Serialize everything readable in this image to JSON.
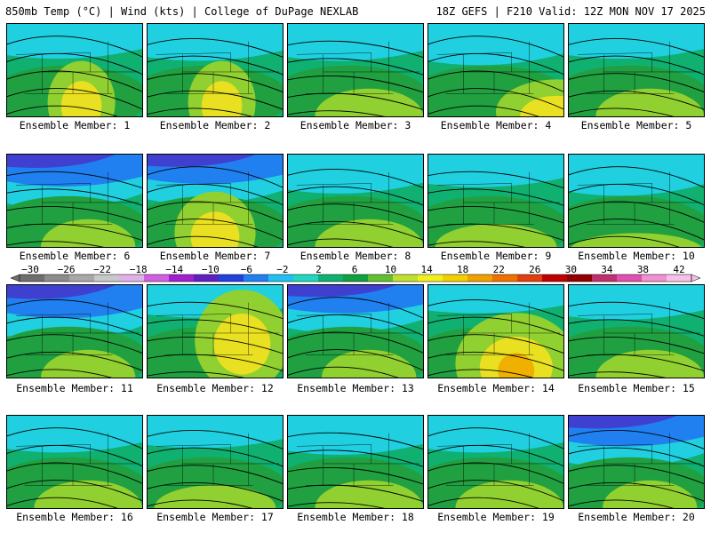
{
  "header": {
    "left": "850mb Temp (°C) | Wind (kts) | College of DuPage NEXLAB",
    "right": "18Z GEFS | F210 Valid: 12Z MON NOV 17 2025"
  },
  "members": [
    {
      "label": "Ensemble Member: 1",
      "pattern": "warm-center",
      "cold": 0.35
    },
    {
      "label": "Ensemble Member: 2",
      "pattern": "warm-center",
      "cold": 0.4
    },
    {
      "label": "Ensemble Member: 3",
      "pattern": "mild",
      "cold": 0.4
    },
    {
      "label": "Ensemble Member: 4",
      "pattern": "warm-southeast",
      "cold": 0.5
    },
    {
      "label": "Ensemble Member: 5",
      "pattern": "mild",
      "cold": 0.35
    },
    {
      "label": "Ensemble Member: 6",
      "pattern": "cold-north",
      "cold": 0.8
    },
    {
      "label": "Ensemble Member: 7",
      "pattern": "warm-center-cold-ne",
      "cold": 0.7
    },
    {
      "label": "Ensemble Member: 8",
      "pattern": "mild",
      "cold": 0.45
    },
    {
      "label": "Ensemble Member: 9",
      "pattern": "mild-green",
      "cold": 0.3
    },
    {
      "label": "Ensemble Member: 10",
      "pattern": "cool",
      "cold": 0.5
    },
    {
      "label": "Ensemble Member: 11",
      "pattern": "cold-north",
      "cold": 0.85
    },
    {
      "label": "Ensemble Member: 12",
      "pattern": "warm-east",
      "cold": 0.3
    },
    {
      "label": "Ensemble Member: 13",
      "pattern": "cold-north",
      "cold": 0.65
    },
    {
      "label": "Ensemble Member: 14",
      "pattern": "warm-south",
      "cold": 0.2
    },
    {
      "label": "Ensemble Member: 15",
      "pattern": "mild",
      "cold": 0.35
    },
    {
      "label": "Ensemble Member: 16",
      "pattern": "mild",
      "cold": 0.4
    },
    {
      "label": "Ensemble Member: 17",
      "pattern": "mild-green",
      "cold": 0.3
    },
    {
      "label": "Ensemble Member: 18",
      "pattern": "mild",
      "cold": 0.45
    },
    {
      "label": "Ensemble Member: 19",
      "pattern": "mild",
      "cold": 0.4
    },
    {
      "label": "Ensemble Member: 20",
      "pattern": "cold-north",
      "cold": 0.75
    }
  ],
  "colorbar": {
    "labels": [
      "−30",
      "−26",
      "−22",
      "−18",
      "−14",
      "−10",
      "−6",
      "−2",
      "2",
      "6",
      "10",
      "14",
      "18",
      "22",
      "26",
      "30",
      "34",
      "38",
      "42"
    ],
    "colors": [
      "#6e6e6e",
      "#8c8c8c",
      "#a8a8a8",
      "#c8c8c8",
      "#e0b0e8",
      "#d060e0",
      "#a020d0",
      "#6020c0",
      "#2040e0",
      "#2080f0",
      "#20c0f0",
      "#20d8c0",
      "#10b070",
      "#10a040",
      "#60c030",
      "#c0e030",
      "#f0f020",
      "#f0d000",
      "#f0a000",
      "#f07000",
      "#e04010",
      "#c00000",
      "#900000",
      "#c03070",
      "#e050b0",
      "#f090d0",
      "#f8c0e8"
    ]
  }
}
